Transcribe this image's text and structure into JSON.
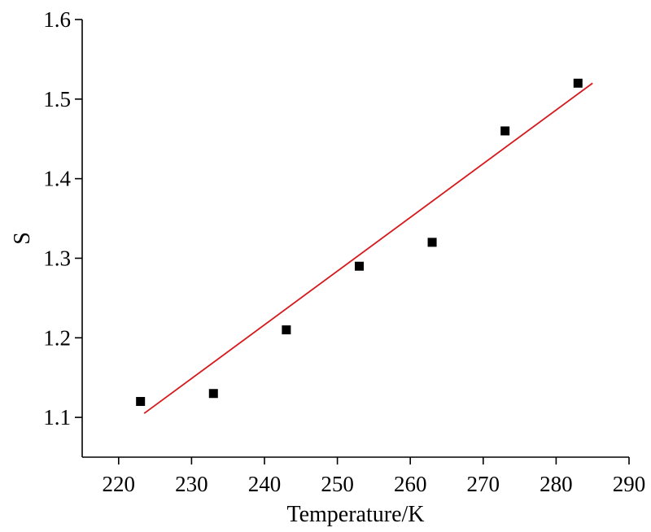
{
  "chart_data": {
    "type": "scatter",
    "title": "",
    "xlabel": "Temperature/K",
    "ylabel": "S",
    "xlim": [
      215,
      290
    ],
    "ylim": [
      1.05,
      1.6
    ],
    "xticks": [
      220,
      230,
      240,
      250,
      260,
      270,
      280,
      290
    ],
    "xtick_labels": [
      "220",
      "230",
      "240",
      "250",
      "260",
      "270",
      "280",
      "290"
    ],
    "yticks": [
      1.1,
      1.2,
      1.3,
      1.4,
      1.5,
      1.6
    ],
    "ytick_labels": [
      "1.1",
      "1.2",
      "1.3",
      "1.4",
      "1.5",
      "1.6"
    ],
    "grid": false,
    "legend": "none",
    "series": [
      {
        "type": "scatter",
        "marker": "square",
        "color": "#000000",
        "x": [
          223,
          233,
          243,
          253,
          263,
          273,
          283
        ],
        "y": [
          1.12,
          1.13,
          1.21,
          1.29,
          1.32,
          1.46,
          1.52
        ]
      },
      {
        "type": "line",
        "color": "#d7191c",
        "x": [
          223.5,
          285
        ],
        "y": [
          1.105,
          1.52
        ]
      }
    ]
  }
}
